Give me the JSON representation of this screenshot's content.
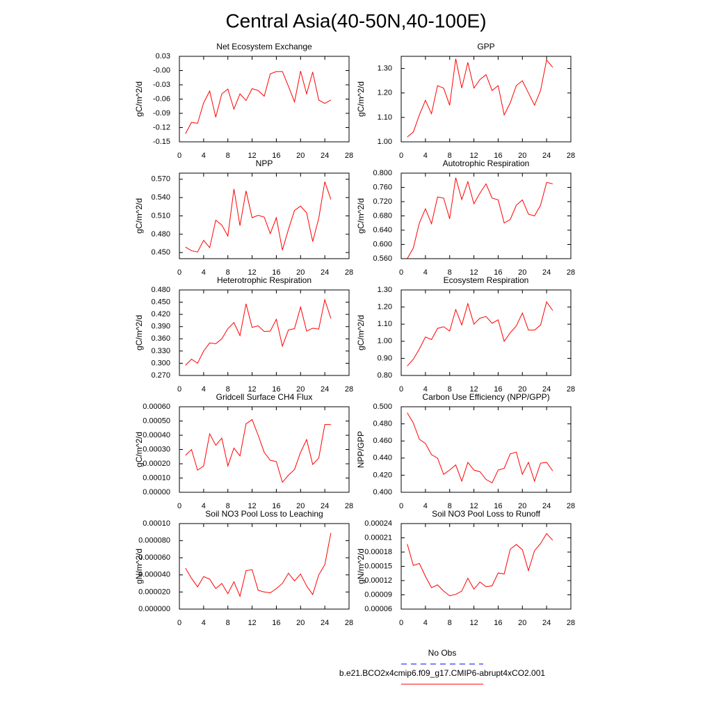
{
  "title": "Central Asia(40-50N,40-100E)",
  "legend": [
    {
      "name": "No Obs",
      "color": "#0000ff",
      "dash": true
    },
    {
      "name": "b.e21.BCO2x4cmip6.f09_g17.CMIP6-abrupt4xCO2.001",
      "color": "#ff0000",
      "dash": false
    }
  ],
  "chart_data": [
    {
      "type": "line",
      "title": "Net Ecosystem Exchange",
      "ylabel": "gC/m^2/d",
      "color": "#ff0000",
      "x": [
        1,
        2,
        3,
        4,
        5,
        6,
        7,
        8,
        9,
        10,
        11,
        12,
        13,
        14,
        15,
        16,
        17,
        18,
        19,
        20,
        21,
        22,
        23,
        24,
        25
      ],
      "values": [
        -0.133,
        -0.109,
        -0.111,
        -0.068,
        -0.043,
        -0.098,
        -0.049,
        -0.039,
        -0.081,
        -0.049,
        -0.063,
        -0.038,
        -0.042,
        -0.054,
        -0.007,
        -0.002,
        -0.002,
        -0.033,
        -0.066,
        -0.001,
        -0.049,
        -0.003,
        -0.062,
        -0.069,
        -0.062
      ],
      "xlim": [
        0,
        28
      ],
      "xticks": [
        0,
        4,
        8,
        12,
        16,
        20,
        24,
        28
      ],
      "ylim": [
        -0.15,
        0.03
      ],
      "yticks": [
        0.03,
        {
          "value": 0,
          "label": "-0.00"
        },
        -0.03,
        -0.06,
        -0.09,
        -0.12,
        -0.15
      ]
    },
    {
      "type": "line",
      "title": "GPP",
      "ylabel": "gC/m^2/d",
      "color": "#ff0000",
      "x": [
        1,
        2,
        3,
        4,
        5,
        6,
        7,
        8,
        9,
        10,
        11,
        12,
        13,
        14,
        15,
        16,
        17,
        18,
        19,
        20,
        21,
        22,
        23,
        24,
        25
      ],
      "values": [
        1.02,
        1.04,
        1.11,
        1.17,
        1.115,
        1.23,
        1.22,
        1.15,
        1.34,
        1.22,
        1.325,
        1.22,
        1.255,
        1.275,
        1.21,
        1.23,
        1.11,
        1.16,
        1.23,
        1.25,
        1.2,
        1.15,
        1.21,
        1.335,
        1.305
      ],
      "xlim": [
        0,
        28
      ],
      "xticks": [
        0,
        4,
        8,
        12,
        16,
        20,
        24,
        28
      ],
      "ylim": [
        1.0,
        1.35
      ],
      "yticks": [
        {
          "value": 1.0,
          "label": "1.00"
        },
        {
          "value": 1.1,
          "label": "1.10"
        },
        {
          "value": 1.2,
          "label": "1.20"
        },
        {
          "value": 1.3,
          "label": "1.30"
        }
      ]
    },
    {
      "type": "line",
      "title": "NPP",
      "ylabel": "gC/m^2/d",
      "color": "#ff0000",
      "x": [
        1,
        2,
        3,
        4,
        5,
        6,
        7,
        8,
        9,
        10,
        11,
        12,
        13,
        14,
        15,
        16,
        17,
        18,
        19,
        20,
        21,
        22,
        23,
        24,
        25
      ],
      "values": [
        0.459,
        0.453,
        0.451,
        0.47,
        0.458,
        0.503,
        0.495,
        0.477,
        0.554,
        0.494,
        0.551,
        0.507,
        0.511,
        0.508,
        0.481,
        0.507,
        0.454,
        0.488,
        0.519,
        0.526,
        0.515,
        0.468,
        0.506,
        0.566,
        0.537
      ],
      "xlim": [
        0,
        28
      ],
      "xticks": [
        0,
        4,
        8,
        12,
        16,
        20,
        24,
        28
      ],
      "ylim": [
        0.44,
        0.58
      ],
      "yticks": [
        {
          "value": 0.45,
          "label": "0.450"
        },
        {
          "value": 0.48,
          "label": "0.480"
        },
        {
          "value": 0.51,
          "label": "0.510"
        },
        {
          "value": 0.54,
          "label": "0.540"
        },
        {
          "value": 0.57,
          "label": "0.570"
        }
      ]
    },
    {
      "type": "line",
      "title": "Autotrophic Respiration",
      "ylabel": "gC/m^2/d",
      "color": "#ff0000",
      "x": [
        1,
        2,
        3,
        4,
        5,
        6,
        7,
        8,
        9,
        10,
        11,
        12,
        13,
        14,
        15,
        16,
        17,
        18,
        19,
        20,
        21,
        22,
        23,
        24,
        25
      ],
      "values": [
        0.56,
        0.59,
        0.66,
        0.7,
        0.658,
        0.733,
        0.73,
        0.672,
        0.787,
        0.726,
        0.776,
        0.714,
        0.744,
        0.77,
        0.73,
        0.725,
        0.66,
        0.67,
        0.71,
        0.725,
        0.685,
        0.68,
        0.71,
        0.774,
        0.77
      ],
      "xlim": [
        0,
        28
      ],
      "xticks": [
        0,
        4,
        8,
        12,
        16,
        20,
        24,
        28
      ],
      "ylim": [
        0.56,
        0.8
      ],
      "yticks": [
        {
          "value": 0.56,
          "label": "0.560"
        },
        {
          "value": 0.6,
          "label": "0.600"
        },
        {
          "value": 0.64,
          "label": "0.640"
        },
        {
          "value": 0.68,
          "label": "0.680"
        },
        {
          "value": 0.72,
          "label": "0.720"
        },
        {
          "value": 0.76,
          "label": "0.760"
        },
        {
          "value": 0.8,
          "label": "0.800"
        }
      ]
    },
    {
      "type": "line",
      "title": "Heterotrophic Respiration",
      "ylabel": "gC/m^2/d",
      "color": "#ff0000",
      "x": [
        1,
        2,
        3,
        4,
        5,
        6,
        7,
        8,
        9,
        10,
        11,
        12,
        13,
        14,
        15,
        16,
        17,
        18,
        19,
        20,
        21,
        22,
        23,
        24,
        25
      ],
      "values": [
        0.295,
        0.31,
        0.3,
        0.33,
        0.35,
        0.348,
        0.36,
        0.385,
        0.4,
        0.368,
        0.446,
        0.388,
        0.392,
        0.378,
        0.379,
        0.408,
        0.342,
        0.382,
        0.385,
        0.438,
        0.379,
        0.386,
        0.384,
        0.456,
        0.41
      ],
      "xlim": [
        0,
        28
      ],
      "xticks": [
        0,
        4,
        8,
        12,
        16,
        20,
        24,
        28
      ],
      "ylim": [
        0.27,
        0.48
      ],
      "yticks": [
        {
          "value": 0.27,
          "label": "0.270"
        },
        {
          "value": 0.3,
          "label": "0.300"
        },
        {
          "value": 0.33,
          "label": "0.330"
        },
        {
          "value": 0.36,
          "label": "0.360"
        },
        {
          "value": 0.39,
          "label": "0.390"
        },
        {
          "value": 0.42,
          "label": "0.420"
        },
        {
          "value": 0.45,
          "label": "0.450"
        },
        {
          "value": 0.48,
          "label": "0.480"
        }
      ]
    },
    {
      "type": "line",
      "title": "Ecosystem Respiration",
      "ylabel": "gC/m^2/d",
      "color": "#ff0000",
      "x": [
        1,
        2,
        3,
        4,
        5,
        6,
        7,
        8,
        9,
        10,
        11,
        12,
        13,
        14,
        15,
        16,
        17,
        18,
        19,
        20,
        21,
        22,
        23,
        24,
        25
      ],
      "values": [
        0.855,
        0.895,
        0.955,
        1.025,
        1.01,
        1.075,
        1.085,
        1.06,
        1.185,
        1.095,
        1.22,
        1.1,
        1.135,
        1.145,
        1.105,
        1.125,
        1.0,
        1.05,
        1.09,
        1.165,
        1.065,
        1.065,
        1.095,
        1.23,
        1.18
      ],
      "xlim": [
        0,
        28
      ],
      "xticks": [
        0,
        4,
        8,
        12,
        16,
        20,
        24,
        28
      ],
      "ylim": [
        0.8,
        1.3
      ],
      "yticks": [
        {
          "value": 0.8,
          "label": "0.80"
        },
        {
          "value": 0.9,
          "label": "0.90"
        },
        {
          "value": 1.0,
          "label": "1.00"
        },
        {
          "value": 1.1,
          "label": "1.10"
        },
        {
          "value": 1.2,
          "label": "1.20"
        },
        {
          "value": 1.3,
          "label": "1.30"
        }
      ]
    },
    {
      "type": "line",
      "title": "Gridcell Surface CH4 Flux",
      "ylabel": "gC/m^2/d",
      "color": "#ff0000",
      "x": [
        1,
        2,
        3,
        4,
        5,
        6,
        7,
        8,
        9,
        10,
        11,
        12,
        13,
        14,
        15,
        16,
        17,
        18,
        19,
        20,
        21,
        22,
        23,
        24,
        25
      ],
      "values": [
        0.00026,
        0.0003,
        0.000155,
        0.000185,
        0.00041,
        0.00033,
        0.00038,
        0.000185,
        0.00031,
        0.000255,
        0.00048,
        0.00051,
        0.0004,
        0.00028,
        0.000225,
        0.000215,
        7e-05,
        0.00012,
        0.00016,
        0.00028,
        0.00037,
        0.000195,
        0.00024,
        0.000475,
        0.000475
      ],
      "xlim": [
        0,
        28
      ],
      "xticks": [
        0,
        4,
        8,
        12,
        16,
        20,
        24,
        28
      ],
      "ylim": [
        0,
        0.0006
      ],
      "yticks": [
        {
          "value": 0,
          "label": "0.00000"
        },
        {
          "value": 0.0001,
          "label": "0.00010"
        },
        {
          "value": 0.0002,
          "label": "0.00020"
        },
        {
          "value": 0.0003,
          "label": "0.00030"
        },
        {
          "value": 0.0004,
          "label": "0.00040"
        },
        {
          "value": 0.0005,
          "label": "0.00050"
        },
        {
          "value": 0.0006,
          "label": "0.00060"
        }
      ]
    },
    {
      "type": "line",
      "title": "Carbon Use Efficiency (NPP/GPP)",
      "ylabel": "NPP/GPP",
      "color": "#ff0000",
      "x": [
        1,
        2,
        3,
        4,
        5,
        6,
        7,
        8,
        9,
        10,
        11,
        12,
        13,
        14,
        15,
        16,
        17,
        18,
        19,
        20,
        21,
        22,
        23,
        24,
        25
      ],
      "values": [
        0.493,
        0.481,
        0.462,
        0.457,
        0.444,
        0.44,
        0.421,
        0.426,
        0.432,
        0.413,
        0.435,
        0.426,
        0.424,
        0.415,
        0.411,
        0.426,
        0.428,
        0.445,
        0.447,
        0.421,
        0.435,
        0.413,
        0.434,
        0.435,
        0.425
      ],
      "xlim": [
        0,
        28
      ],
      "xticks": [
        0,
        4,
        8,
        12,
        16,
        20,
        24,
        28
      ],
      "ylim": [
        0.4,
        0.5
      ],
      "yticks": [
        {
          "value": 0.4,
          "label": "0.400"
        },
        {
          "value": 0.42,
          "label": "0.420"
        },
        {
          "value": 0.44,
          "label": "0.440"
        },
        {
          "value": 0.46,
          "label": "0.460"
        },
        {
          "value": 0.48,
          "label": "0.480"
        },
        {
          "value": 0.5,
          "label": "0.500"
        }
      ]
    },
    {
      "type": "line",
      "title": "Soil NO3 Pool Loss to Leaching",
      "ylabel": "gN/m^2/d",
      "color": "#ff0000",
      "x": [
        1,
        2,
        3,
        4,
        5,
        6,
        7,
        8,
        9,
        10,
        11,
        12,
        13,
        14,
        15,
        16,
        17,
        18,
        19,
        20,
        21,
        22,
        23,
        24,
        25
      ],
      "values": [
        4.8e-05,
        3.6e-05,
        2.6e-05,
        3.8e-05,
        3.5e-05,
        2.4e-05,
        3e-05,
        1.8e-05,
        3.2e-05,
        1.5e-05,
        4.5e-05,
        4.6e-05,
        2.2e-05,
        2e-05,
        1.9e-05,
        2.4e-05,
        3e-05,
        4.2e-05,
        3.3e-05,
        4.1e-05,
        2.7e-05,
        1.7e-05,
        4e-05,
        5.2e-05,
        8.9e-05
      ],
      "xlim": [
        0,
        28
      ],
      "xticks": [
        0,
        4,
        8,
        12,
        16,
        20,
        24,
        28
      ],
      "ylim": [
        0,
        0.0001
      ],
      "yticks": [
        {
          "value": 0,
          "label": "0.000000"
        },
        {
          "value": 2e-05,
          "label": "0.000020"
        },
        {
          "value": 4e-05,
          "label": "0.000040"
        },
        {
          "value": 6e-05,
          "label": "0.000060"
        },
        {
          "value": 8e-05,
          "label": "0.000080"
        },
        {
          "value": 0.0001,
          "label": "0.00010"
        }
      ]
    },
    {
      "type": "line",
      "title": "Soil NO3 Pool Loss to Runoff",
      "ylabel": "gN/m^2/d",
      "color": "#ff0000",
      "x": [
        1,
        2,
        3,
        4,
        5,
        6,
        7,
        8,
        9,
        10,
        11,
        12,
        13,
        14,
        15,
        16,
        17,
        18,
        19,
        20,
        21,
        22,
        23,
        24,
        25
      ],
      "values": [
        0.000197,
        0.000152,
        0.000156,
        0.000129,
        0.000105,
        0.000111,
        9.8e-05,
        8.8e-05,
        9.1e-05,
        9.8e-05,
        0.000125,
        0.000102,
        0.000117,
        0.000107,
        0.000109,
        0.000136,
        0.000134,
        0.000186,
        0.000196,
        0.000185,
        0.000141,
        0.000183,
        0.000198,
        0.000219,
        0.000205
      ],
      "xlim": [
        0,
        28
      ],
      "xticks": [
        0,
        4,
        8,
        12,
        16,
        20,
        24,
        28
      ],
      "ylim": [
        6e-05,
        0.00024
      ],
      "yticks": [
        {
          "value": 6e-05,
          "label": "0.00006"
        },
        {
          "value": 9e-05,
          "label": "0.00009"
        },
        {
          "value": 0.00012,
          "label": "0.00012"
        },
        {
          "value": 0.00015,
          "label": "0.00015"
        },
        {
          "value": 0.00018,
          "label": "0.00018"
        },
        {
          "value": 0.00021,
          "label": "0.00021"
        },
        {
          "value": 0.00024,
          "label": "0.00024"
        }
      ]
    }
  ]
}
